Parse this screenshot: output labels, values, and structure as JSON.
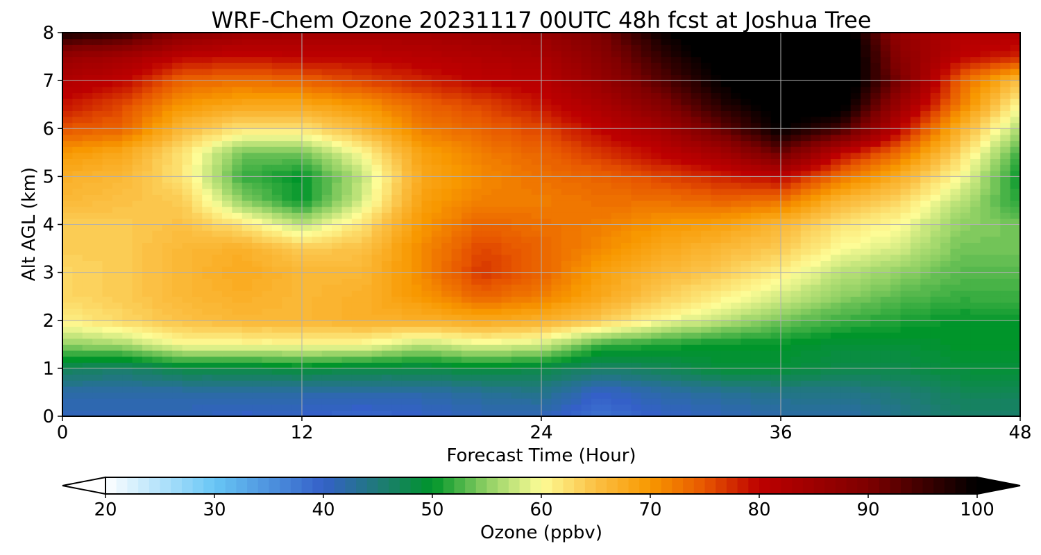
{
  "chart_data": {
    "type": "heatmap",
    "subtype": "filled-contour",
    "title": "WRF-Chem Ozone  20231117 00UTC 48h fcst at Joshua Tree",
    "xlabel": "Forecast Time (Hour)",
    "ylabel": "Alt AGL (km)",
    "xlim": [
      0,
      48
    ],
    "ylim": [
      0,
      8
    ],
    "xticks": [
      0,
      12,
      24,
      36,
      48
    ],
    "yticks": [
      0,
      1,
      2,
      3,
      4,
      5,
      6,
      7,
      8
    ],
    "grid": true,
    "x": [
      0,
      3,
      6,
      9,
      12,
      15,
      18,
      21,
      24,
      27,
      30,
      33,
      36,
      39,
      42,
      45,
      48
    ],
    "y": [
      0,
      0.5,
      1,
      1.5,
      2,
      2.5,
      3,
      3.5,
      4,
      4.5,
      5,
      5.5,
      6,
      6.5,
      7,
      7.5,
      8
    ],
    "z": [
      [
        41,
        41,
        41,
        40,
        40,
        39,
        40,
        41,
        41,
        38,
        40,
        41,
        42,
        42,
        44,
        46,
        46
      ],
      [
        42,
        42,
        42,
        42,
        42,
        42,
        42,
        43,
        44,
        40,
        42,
        43,
        44,
        44,
        45,
        47,
        47
      ],
      [
        47,
        46,
        48,
        48,
        49,
        48,
        48,
        49,
        48,
        46,
        47,
        49,
        49,
        48,
        48,
        49,
        49
      ],
      [
        55,
        56,
        60,
        60,
        60,
        60,
        57,
        59,
        58,
        52,
        51,
        50,
        50,
        49,
        49,
        50,
        50
      ],
      [
        61,
        63,
        65,
        66,
        66,
        67,
        67,
        68,
        67,
        64,
        60,
        57,
        54,
        52,
        51,
        50,
        50
      ],
      [
        63,
        64,
        66,
        67,
        66,
        67,
        70,
        74,
        72,
        68,
        64,
        61,
        58,
        55,
        53,
        52,
        52
      ],
      [
        63,
        64,
        66,
        68,
        66,
        66,
        71,
        77,
        74,
        69,
        66,
        64,
        61,
        57,
        55,
        53,
        53
      ],
      [
        64,
        64,
        66,
        67,
        64,
        65,
        71,
        76,
        74,
        71,
        68,
        66,
        64,
        60,
        58,
        54,
        54
      ],
      [
        64,
        64,
        65,
        62,
        57,
        62,
        70,
        74,
        73,
        72,
        70,
        69,
        66,
        62,
        60,
        55,
        54
      ],
      [
        66,
        65,
        64,
        55,
        50,
        58,
        69,
        72,
        72,
        73,
        73,
        74,
        73,
        66,
        63,
        57,
        51
      ],
      [
        67,
        66,
        62,
        52,
        50,
        57,
        68,
        71,
        73,
        74,
        76,
        78,
        80,
        73,
        67,
        60,
        50
      ],
      [
        70,
        68,
        62,
        54,
        54,
        60,
        69,
        72,
        74,
        77,
        80,
        84,
        92,
        80,
        73,
        63,
        52
      ],
      [
        75,
        74,
        66,
        62,
        62,
        66,
        72,
        74,
        76,
        80,
        84,
        92,
        100,
        95,
        80,
        67,
        56
      ],
      [
        79,
        76,
        70,
        68,
        68,
        70,
        74,
        76,
        79,
        83,
        89,
        97,
        102,
        102,
        85,
        72,
        60
      ],
      [
        82,
        80,
        74,
        73,
        74,
        76,
        78,
        80,
        81,
        86,
        93,
        100,
        104,
        104,
        90,
        74,
        65
      ],
      [
        86,
        84,
        80,
        79,
        80,
        80,
        81,
        82,
        83,
        88,
        96,
        102,
        105,
        105,
        88,
        80,
        78
      ],
      [
        98,
        96,
        88,
        85,
        84,
        84,
        84,
        85,
        86,
        90,
        99,
        104,
        106,
        104,
        86,
        82,
        82
      ]
    ],
    "colorbar": {
      "label": "Ozone  (ppbv)",
      "range": [
        20,
        100
      ],
      "ticks": [
        20,
        30,
        40,
        50,
        60,
        70,
        80,
        90,
        100
      ],
      "extend": "both",
      "color_stops": [
        {
          "value": 20,
          "color": "#ffffff"
        },
        {
          "value": 30,
          "color": "#68c6f5"
        },
        {
          "value": 40,
          "color": "#3460c8"
        },
        {
          "value": 45,
          "color": "#1f7a78"
        },
        {
          "value": 50,
          "color": "#00952a"
        },
        {
          "value": 55,
          "color": "#8fd064"
        },
        {
          "value": 60,
          "color": "#fdfc96"
        },
        {
          "value": 65,
          "color": "#fbc044"
        },
        {
          "value": 70,
          "color": "#f89800"
        },
        {
          "value": 75,
          "color": "#e75600"
        },
        {
          "value": 80,
          "color": "#bd0000"
        },
        {
          "value": 90,
          "color": "#7e0000"
        },
        {
          "value": 100,
          "color": "#000000"
        }
      ]
    }
  }
}
